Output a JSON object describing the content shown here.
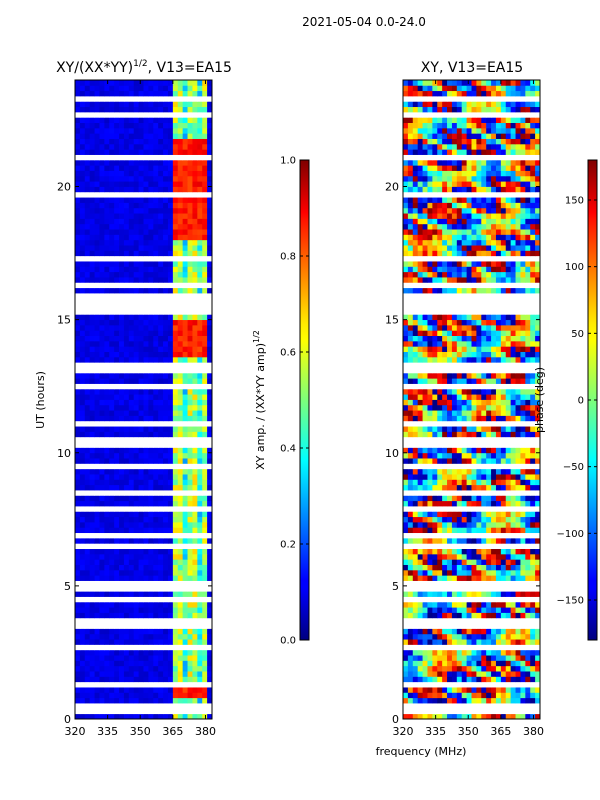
{
  "figure": {
    "suptitle": "2021-05-04 0.0-24.0",
    "xlabel_shared": "frequency (MHz)"
  },
  "chart_data": [
    {
      "type": "heatmap",
      "title_main": "XY/(XX*YY)",
      "title_sup": "1/2",
      "title_suffix": ", V13=EA15",
      "ylabel": "UT (hours)",
      "xlim": [
        320,
        383
      ],
      "ylim": [
        0,
        24
      ],
      "xticks": [
        320,
        335,
        350,
        365,
        380
      ],
      "yticks": [
        0,
        5,
        10,
        15,
        20
      ],
      "colormap": "jet",
      "clim": [
        0,
        1
      ],
      "colorbar_label_main": "XY amp. / (XX*YY amp)",
      "colorbar_label_sup": "1/2",
      "colorbar_ticks": [
        0.0,
        0.2,
        0.4,
        0.6,
        0.8,
        1.0
      ],
      "colorbar_tick_labels": [
        "0.0",
        "0.2",
        "0.4",
        "0.6",
        "0.8",
        "1.0"
      ],
      "description_values": {
        "background_amp": 0.1,
        "band_rfi_freq_range": [
          364,
          381
        ],
        "band_rfi_amp": 0.55,
        "high_amp_time_ranges": [
          [
            0.8,
            1.3
          ],
          [
            13.6,
            15.0
          ],
          [
            18.0,
            21.7
          ]
        ],
        "high_amp_value": 0.85
      }
    },
    {
      "type": "heatmap",
      "title": "XY, V13=EA15",
      "xlim": [
        320,
        383
      ],
      "ylim": [
        0,
        24
      ],
      "xticks": [
        320,
        335,
        350,
        365,
        380
      ],
      "yticks": [
        0,
        5,
        10,
        15,
        20
      ],
      "colormap": "jet",
      "clim": [
        -180,
        180
      ],
      "colorbar_label": "phase (deg)",
      "colorbar_ticks": [
        -150,
        -100,
        -50,
        0,
        50,
        100,
        150
      ],
      "colorbar_tick_labels": [
        "−150",
        "−100",
        "−50",
        "0",
        "50",
        "100",
        "150"
      ]
    }
  ],
  "flagged_time_rows_hours": [
    0.2,
    0.5,
    1.3,
    2.0,
    2.8,
    3.5,
    3.7,
    4.5,
    5.0,
    6.5,
    6.9,
    7.9,
    8.5,
    9.5,
    10.4,
    11.2,
    12.5,
    13.1,
    13.3,
    15.3,
    15.6,
    15.8,
    16.3,
    17.0,
    17.3,
    19.7,
    20.0,
    21.2,
    22.6,
    23.4
  ]
}
